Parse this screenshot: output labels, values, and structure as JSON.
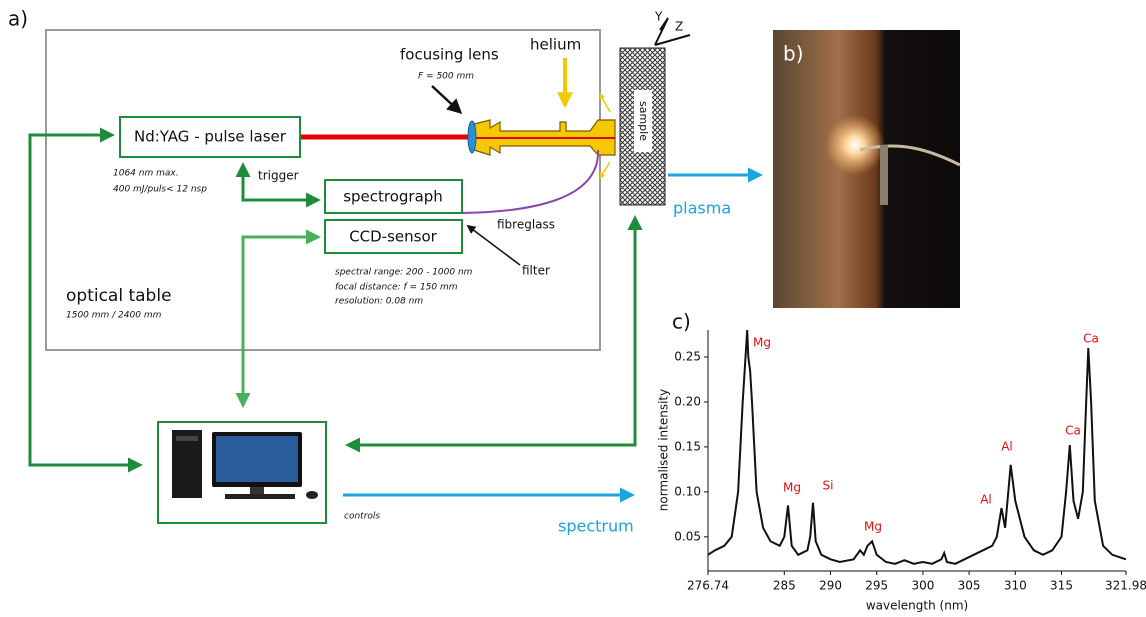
{
  "labels": {
    "a": "a)",
    "b": "b)",
    "c": "c)"
  },
  "setup": {
    "focusing_lens": "focusing lens",
    "focal": "F = 500 mm",
    "helium": "helium",
    "axis_y": "Y",
    "axis_z": "Z",
    "sample": "sample",
    "laser": "Nd:YAG - pulse laser",
    "laser_spec1": "1064 nm max.",
    "laser_spec2": "400 mJ/puls< 12 nsp",
    "trigger": "trigger",
    "spectrograph": "spectrograph",
    "ccd": "CCD-sensor",
    "fibreglass": "fibreglass",
    "filter": "filter",
    "spec1": "spectral range: 200 - 1000 nm",
    "spec2": "focal distance: f = 150 mm",
    "spec3": "resolution: 0.08 nm",
    "table": "optical table",
    "table_size": "1500 mm / 2400 mm",
    "plasma": "plasma",
    "controls": "controls",
    "spectrum": "spectrum"
  },
  "chart_data": {
    "type": "line",
    "xlabel": "wavelength (nm)",
    "ylabel": "normalised intensity",
    "color": "#111111",
    "grid": false,
    "x": [
      276.74,
      277.5,
      278.5,
      279.3,
      280.0,
      280.5,
      280.98,
      281.1,
      281.3,
      281.5,
      282.0,
      282.7,
      283.5,
      284.5,
      285.0,
      285.4,
      285.8,
      286.5,
      287.5,
      287.8,
      288.1,
      288.4,
      289,
      290,
      291,
      292.5,
      293.2,
      293.6,
      294.0,
      294.5,
      295,
      296,
      297,
      298,
      299,
      300,
      301,
      302,
      302.3,
      302.6,
      303.5,
      304.5,
      305.5,
      306.5,
      307.5,
      308,
      308.5,
      308.9,
      309.5,
      310,
      311,
      312,
      313,
      314,
      315,
      315.5,
      315.9,
      316.3,
      316.8,
      317.3,
      317.6,
      317.9,
      318.2,
      318.6,
      319.5,
      320.5,
      321.98
    ],
    "values": [
      0.03,
      0.035,
      0.04,
      0.05,
      0.1,
      0.2,
      0.28,
      0.25,
      0.235,
      0.2,
      0.1,
      0.06,
      0.045,
      0.04,
      0.05,
      0.085,
      0.04,
      0.03,
      0.035,
      0.05,
      0.088,
      0.045,
      0.03,
      0.025,
      0.022,
      0.025,
      0.035,
      0.03,
      0.04,
      0.045,
      0.03,
      0.022,
      0.02,
      0.024,
      0.02,
      0.022,
      0.02,
      0.025,
      0.032,
      0.022,
      0.02,
      0.025,
      0.03,
      0.035,
      0.04,
      0.05,
      0.082,
      0.06,
      0.13,
      0.09,
      0.05,
      0.035,
      0.03,
      0.035,
      0.05,
      0.1,
      0.152,
      0.09,
      0.07,
      0.1,
      0.18,
      0.26,
      0.2,
      0.09,
      0.04,
      0.03,
      0.025
    ],
    "xlim": [
      276.74,
      321.98
    ],
    "xticks": [
      276.74,
      285,
      290,
      295,
      300,
      305,
      310,
      315,
      321.98
    ],
    "ylim": [
      0.012,
      0.28
    ],
    "yticks": [
      0.05,
      {
        "value": 0.1,
        "label": "0.10"
      },
      0.15,
      {
        "value": 0.2,
        "label": "0.20"
      },
      0.25
    ],
    "annotations": [
      "Mg",
      "Mg",
      "Si",
      "Mg",
      "Al",
      "Al",
      "Ca",
      "Ca"
    ],
    "annotation_color": "#e01010"
  }
}
